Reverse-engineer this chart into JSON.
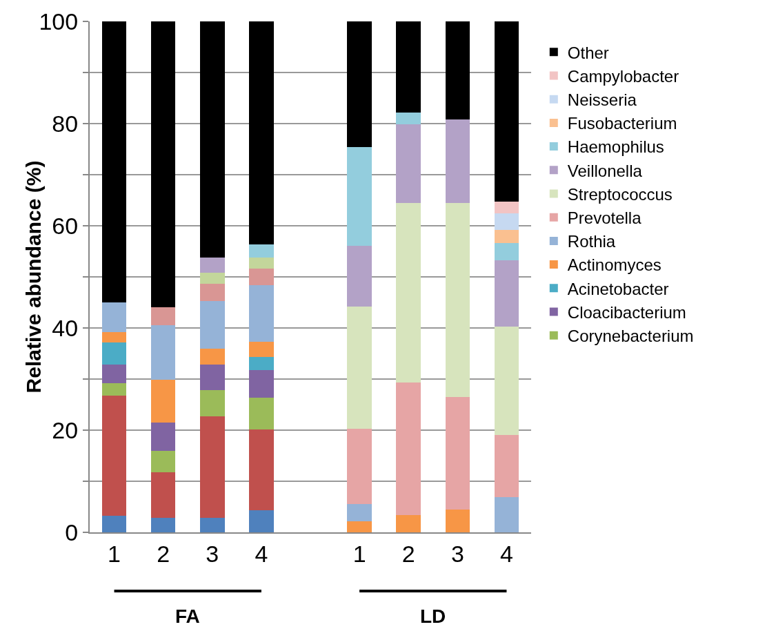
{
  "chart_data": {
    "type": "bar",
    "stacked": true,
    "ylabel": "Relative abundance (%)",
    "categories": [
      "1",
      "2",
      "3",
      "4",
      null,
      "1",
      "2",
      "3",
      "4"
    ],
    "series": [
      {
        "name": "Corynebacterium",
        "color": "#9bbb59",
        "values": [
          null,
          null,
          null,
          null,
          null,
          0,
          0,
          0,
          0
        ]
      },
      {
        "name": "Cloacibacterium",
        "color": "#8064a2",
        "values": [
          null,
          null,
          null,
          null,
          null,
          0,
          0,
          0,
          0
        ]
      },
      {
        "name": "Acinetobacter",
        "color": "#4bacc6",
        "values": [
          null,
          null,
          null,
          null,
          null,
          0,
          0,
          0,
          0
        ]
      },
      {
        "name": "Actinomyces",
        "color": "#f79646",
        "values": [
          null,
          null,
          null,
          null,
          null,
          2.1,
          3.4,
          4.5,
          0
        ]
      },
      {
        "name": "Rothia",
        "color": "#95b3d7",
        "values": [
          null,
          null,
          null,
          null,
          null,
          3.4,
          0,
          0,
          6.9
        ]
      },
      {
        "name": "Prevotella",
        "color": "#e6a5a5",
        "values": [
          null,
          null,
          null,
          null,
          null,
          14.8,
          25.9,
          22.0,
          12.2
        ]
      },
      {
        "name": "Streptococcus",
        "color": "#d7e4bd",
        "values": [
          null,
          null,
          null,
          null,
          null,
          23.9,
          35.1,
          37.9,
          21.2
        ]
      },
      {
        "name": "Veillonella",
        "color": "#b3a2c7",
        "values": [
          null,
          null,
          null,
          null,
          null,
          11.9,
          15.5,
          16.4,
          12.9
        ]
      },
      {
        "name": "Haemophilus",
        "color": "#93cddd",
        "values": [
          null,
          null,
          null,
          null,
          null,
          19.3,
          2.3,
          0,
          3.4
        ]
      },
      {
        "name": "Fusobacterium",
        "color": "#fac090",
        "values": [
          null,
          null,
          null,
          null,
          null,
          0,
          0,
          0,
          2.6
        ]
      },
      {
        "name": "Neisseria",
        "color": "#c6d9f1",
        "values": [
          null,
          null,
          null,
          null,
          null,
          0,
          0,
          0,
          3.3
        ]
      },
      {
        "name": "Campylobacter",
        "color": "#f2c4c4",
        "values": [
          null,
          null,
          null,
          null,
          null,
          0,
          0,
          0,
          2.2
        ]
      },
      {
        "name": "Other",
        "color": "#000000",
        "values": [
          null,
          null,
          null,
          null,
          null,
          24.6,
          17.8,
          19.2,
          35.3
        ]
      },
      {
        "color": "#4f81bd",
        "values": [
          3.3,
          2.8,
          2.8,
          4.3,
          null,
          null,
          null,
          null,
          null
        ]
      },
      {
        "color": "#c0504d",
        "values": [
          23.4,
          9.0,
          19.9,
          15.8,
          null,
          null,
          null,
          null,
          null
        ]
      },
      {
        "color": "#9bbb59",
        "values": [
          2.5,
          4.1,
          5.1,
          6.2,
          null,
          null,
          null,
          null,
          null
        ]
      },
      {
        "color": "#8064a2",
        "values": [
          3.7,
          5.6,
          5.0,
          5.5,
          null,
          null,
          null,
          null,
          null
        ]
      },
      {
        "color": "#4bacc6",
        "values": [
          4.2,
          0,
          0,
          2.5,
          null,
          null,
          null,
          null,
          null
        ]
      },
      {
        "color": "#f79646",
        "values": [
          2.1,
          8.4,
          3.1,
          3.0,
          null,
          null,
          null,
          null,
          null
        ]
      },
      {
        "color": "#95b3d7",
        "values": [
          5.8,
          10.6,
          9.4,
          11.1,
          null,
          null,
          null,
          null,
          null
        ]
      },
      {
        "color": "#d99694",
        "values": [
          0,
          3.6,
          3.3,
          3.2,
          null,
          null,
          null,
          null,
          null
        ]
      },
      {
        "color": "#c3d69b",
        "values": [
          0,
          0,
          2.2,
          2.2,
          null,
          null,
          null,
          null,
          null
        ]
      },
      {
        "color": "#b3a2c7",
        "values": [
          0,
          0,
          3.0,
          0,
          null,
          null,
          null,
          null,
          null
        ]
      },
      {
        "color": "#93cddd",
        "values": [
          0,
          0,
          0,
          2.6,
          null,
          null,
          null,
          null,
          null
        ]
      },
      {
        "color": "#000000",
        "values": [
          55.0,
          55.9,
          46.2,
          43.6,
          null,
          null,
          null,
          null,
          null
        ]
      }
    ],
    "ylim": [
      0,
      100
    ],
    "yticks": [
      0,
      {
        "value": 10,
        "label": null
      },
      20,
      {
        "value": 30,
        "label": null
      },
      40,
      {
        "value": 50,
        "label": null
      },
      60,
      {
        "value": 70,
        "label": null
      },
      80,
      {
        "value": 90,
        "label": null
      },
      100
    ],
    "grid": "y",
    "legend": "right",
    "annotations": [
      "FA",
      "LD"
    ]
  }
}
